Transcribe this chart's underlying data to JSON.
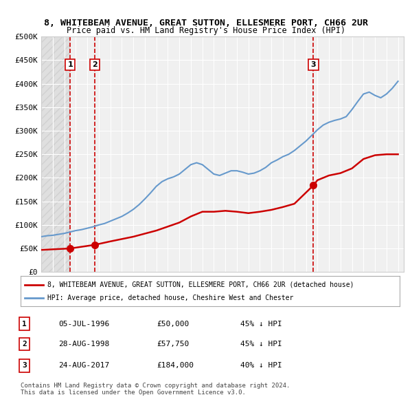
{
  "title": "8, WHITEBEAM AVENUE, GREAT SUTTON, ELLESMERE PORT, CH66 2UR",
  "subtitle": "Price paid vs. HM Land Registry's House Price Index (HPI)",
  "ylabel": "",
  "background_color": "#ffffff",
  "plot_bg_color": "#f0f0f0",
  "grid_color": "#ffffff",
  "ylim": [
    0,
    500000
  ],
  "ytick_labels": [
    "£0",
    "£50K",
    "£100K",
    "£150K",
    "£200K",
    "£250K",
    "£300K",
    "£350K",
    "£400K",
    "£450K",
    "£500K"
  ],
  "ytick_values": [
    0,
    50000,
    100000,
    150000,
    200000,
    250000,
    300000,
    350000,
    400000,
    450000,
    500000
  ],
  "hpi_color": "#6699cc",
  "price_color": "#cc0000",
  "marker_color": "#cc0000",
  "sale_dates": [
    1996.51,
    1998.65,
    2017.65
  ],
  "sale_prices": [
    50000,
    57750,
    184000
  ],
  "sale_labels": [
    "1",
    "2",
    "3"
  ],
  "sale_date_strs": [
    "05-JUL-1996",
    "28-AUG-1998",
    "24-AUG-2017"
  ],
  "sale_price_strs": [
    "£50,000",
    "£57,750",
    "£184,000"
  ],
  "sale_hpi_strs": [
    "45% ↓ HPI",
    "45% ↓ HPI",
    "40% ↓ HPI"
  ],
  "legend_label_red": "8, WHITEBEAM AVENUE, GREAT SUTTON, ELLESMERE PORT, CH66 2UR (detached house)",
  "legend_label_blue": "HPI: Average price, detached house, Cheshire West and Chester",
  "footer_line1": "Contains HM Land Registry data © Crown copyright and database right 2024.",
  "footer_line2": "This data is licensed under the Open Government Licence v3.0.",
  "hpi_x": [
    1994,
    1994.5,
    1995,
    1995.5,
    1996,
    1996.5,
    1997,
    1997.5,
    1998,
    1998.5,
    1999,
    1999.5,
    2000,
    2000.5,
    2001,
    2001.5,
    2002,
    2002.5,
    2003,
    2003.5,
    2004,
    2004.5,
    2005,
    2005.5,
    2006,
    2006.5,
    2007,
    2007.5,
    2008,
    2008.5,
    2009,
    2009.5,
    2010,
    2010.5,
    2011,
    2011.5,
    2012,
    2012.5,
    2013,
    2013.5,
    2014,
    2014.5,
    2015,
    2015.5,
    2016,
    2016.5,
    2017,
    2017.5,
    2018,
    2018.5,
    2019,
    2019.5,
    2020,
    2020.5,
    2021,
    2021.5,
    2022,
    2022.5,
    2023,
    2023.5,
    2024,
    2024.5,
    2025
  ],
  "hpi_y": [
    75000,
    77000,
    78000,
    80000,
    82000,
    85000,
    88000,
    90000,
    93000,
    96000,
    100000,
    103000,
    108000,
    113000,
    118000,
    125000,
    133000,
    143000,
    155000,
    168000,
    182000,
    192000,
    198000,
    202000,
    208000,
    218000,
    228000,
    232000,
    228000,
    218000,
    208000,
    205000,
    210000,
    215000,
    215000,
    212000,
    208000,
    210000,
    215000,
    222000,
    232000,
    238000,
    245000,
    250000,
    258000,
    268000,
    278000,
    290000,
    302000,
    312000,
    318000,
    322000,
    325000,
    330000,
    345000,
    362000,
    378000,
    382000,
    375000,
    370000,
    378000,
    390000,
    405000
  ],
  "price_x": [
    1994,
    1996.51,
    1998.65,
    2017.65,
    2025
  ],
  "price_y": [
    50000,
    50000,
    57750,
    184000,
    250000
  ],
  "hatch_end_year": 1996.51,
  "vline_x": [
    1996.51,
    1998.65,
    2017.65
  ],
  "xlim": [
    1994,
    2025.5
  ]
}
